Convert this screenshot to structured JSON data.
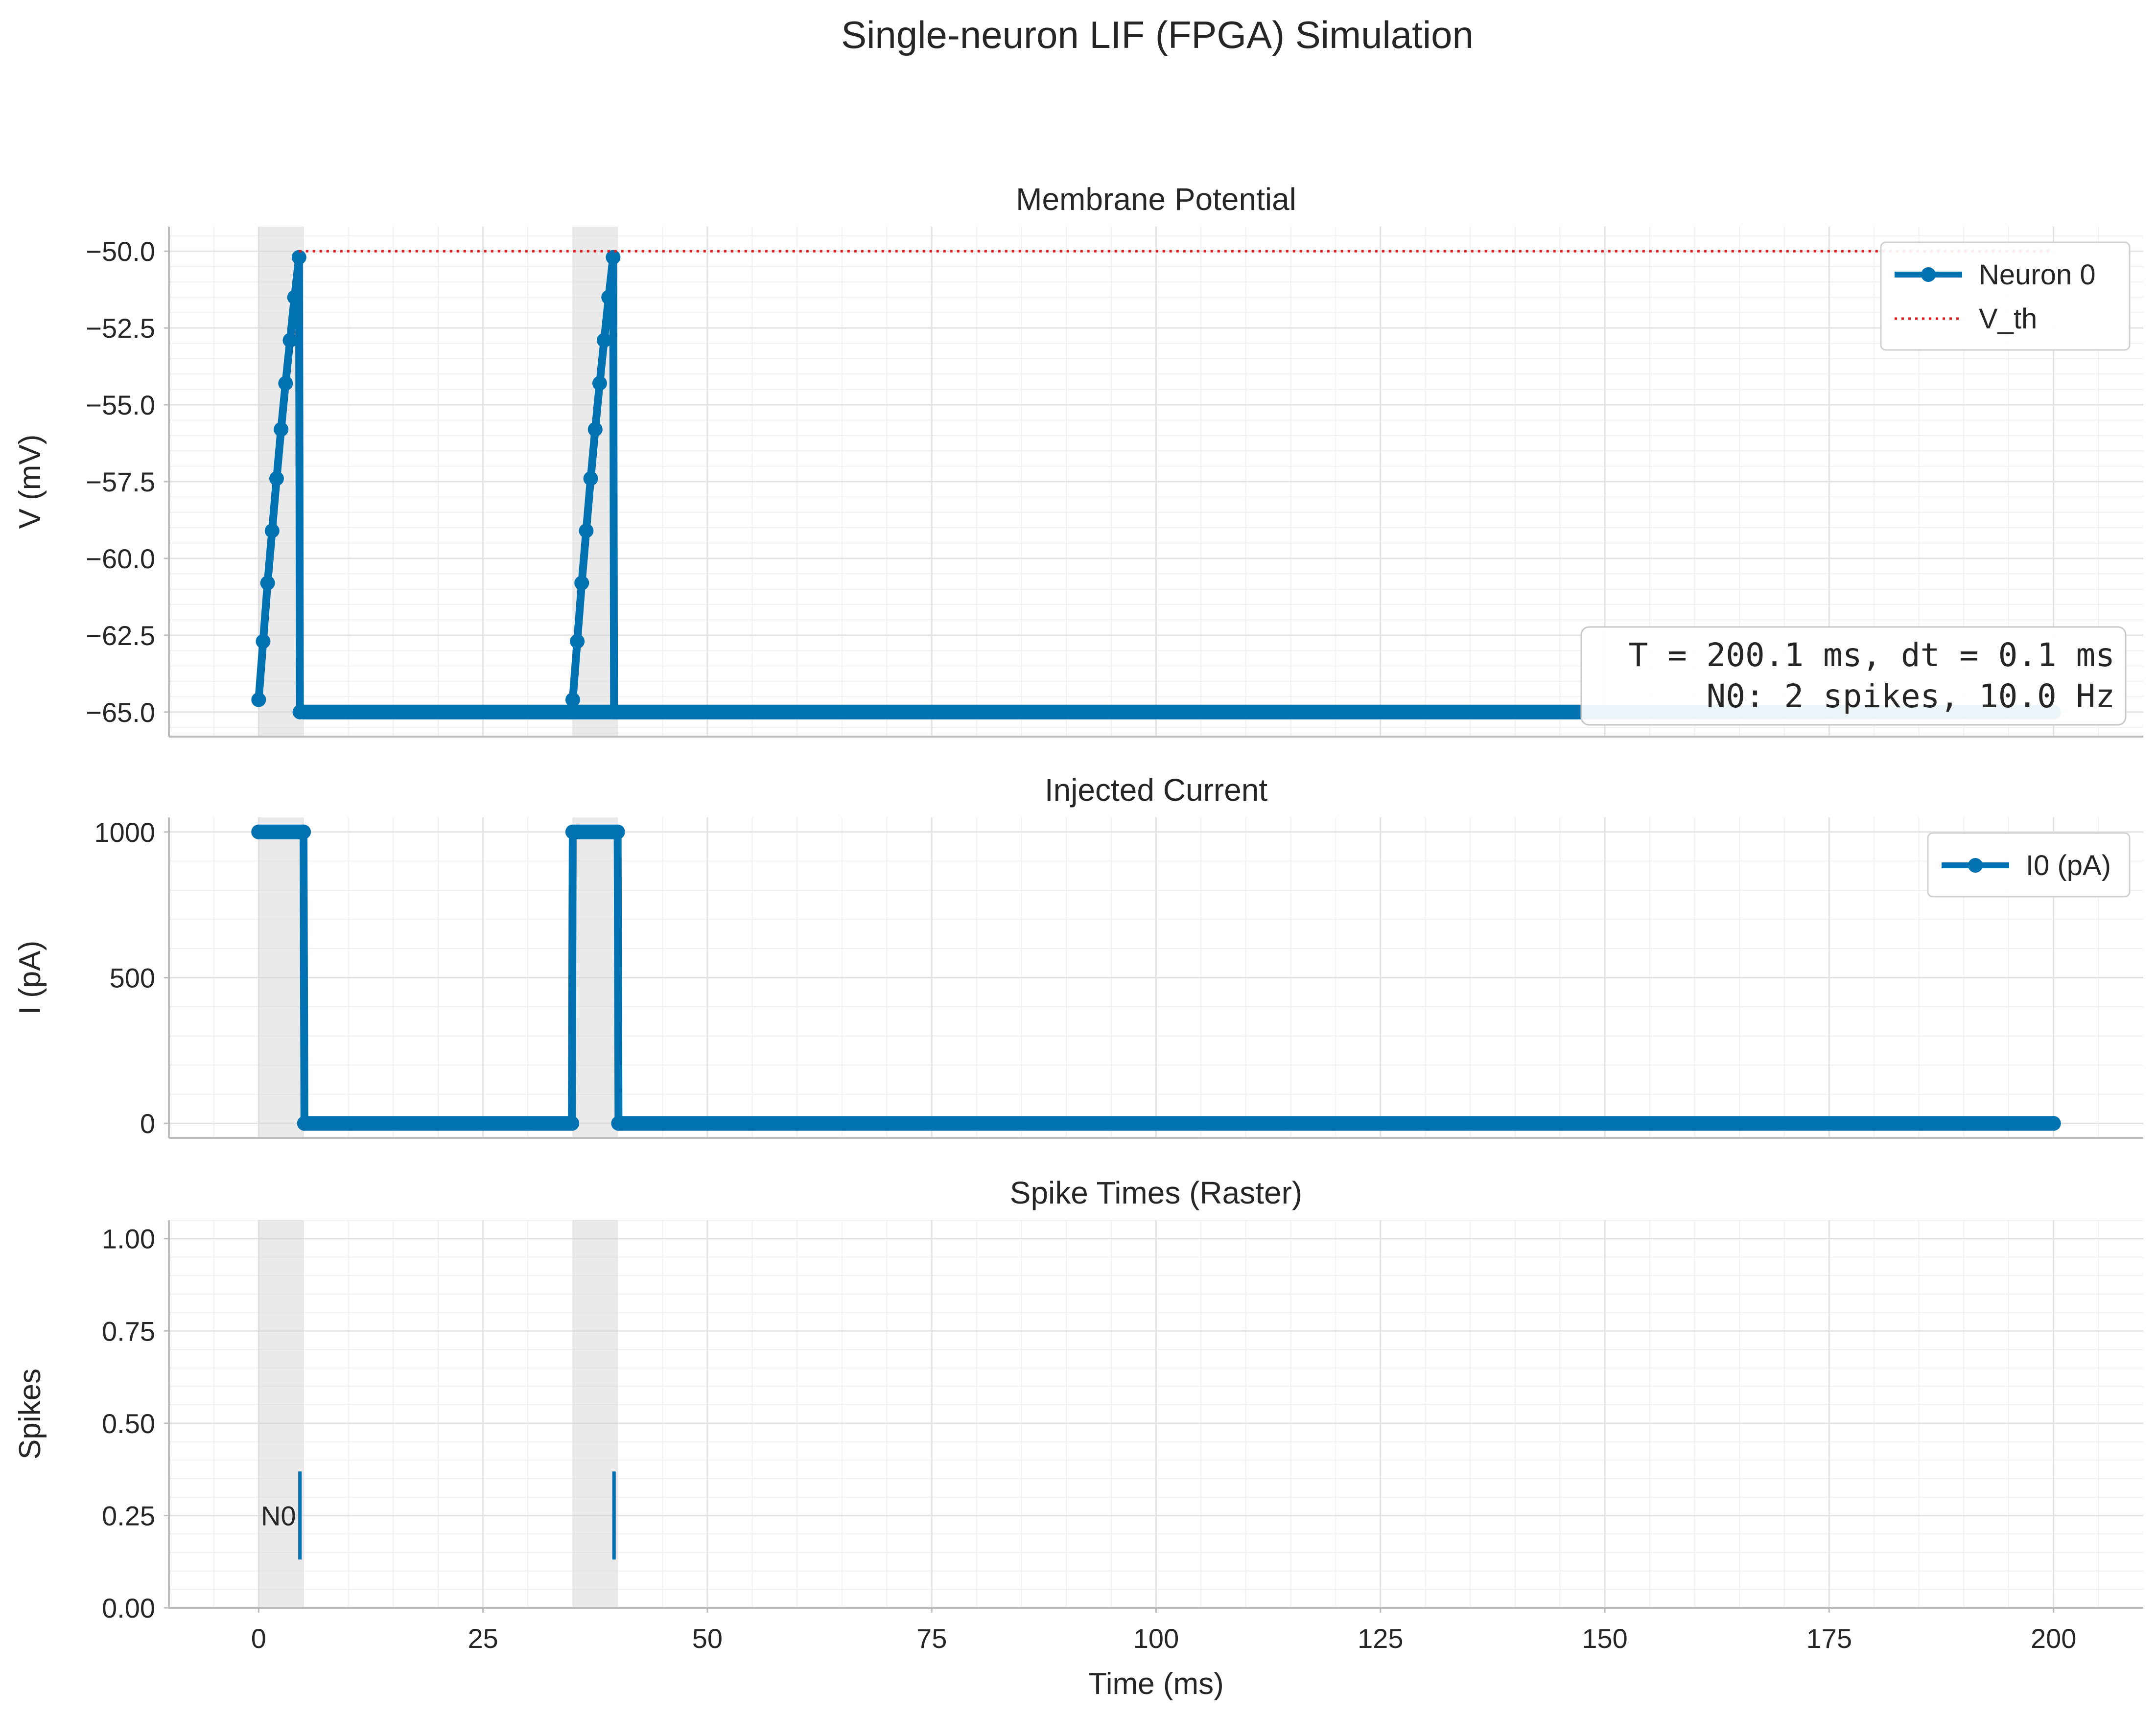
{
  "figure": {
    "title": "Single-neuron LIF (FPGA) Simulation"
  },
  "chart_data": [
    {
      "type": "line",
      "title": "Membrane Potential",
      "xlabel": "",
      "ylabel": "V (mV)",
      "xlim": [
        -10,
        210
      ],
      "ylim": [
        -65.8,
        -49.2
      ],
      "yticks": [
        -50.0,
        -52.5,
        -55.0,
        -57.5,
        -60.0,
        -62.5,
        -65.0
      ],
      "ytick_labels": [
        "−50.0",
        "−52.5",
        "−55.0",
        "−57.5",
        "−60.0",
        "−62.5",
        "−65.0"
      ],
      "grid": true,
      "shaded_intervals": [
        [
          0,
          5
        ],
        [
          35,
          40
        ]
      ],
      "series": [
        {
          "name": "Neuron 0",
          "color": "#0072b2",
          "style": "solid-markers",
          "x": [
            0.0,
            0.5,
            1.0,
            1.5,
            2.0,
            2.5,
            3.0,
            3.5,
            4.0,
            4.5,
            4.6,
            5.0,
            200.0
          ],
          "y": [
            -64.6,
            -62.7,
            -60.8,
            -59.1,
            -57.4,
            -55.8,
            -54.3,
            -52.9,
            -51.5,
            -50.2,
            -65.0,
            -65.0,
            -65.0
          ]
        },
        {
          "name": "Neuron 0",
          "color": "#0072b2",
          "style": "solid-markers",
          "x": [
            34.9,
            35.0,
            35.5,
            36.0,
            36.5,
            37.0,
            37.5,
            38.0,
            38.5,
            39.0,
            39.5,
            39.6,
            40.0
          ],
          "y": [
            -65.0,
            -64.6,
            -62.7,
            -60.8,
            -59.1,
            -57.4,
            -55.8,
            -54.3,
            -52.9,
            -51.5,
            -50.2,
            -65.0,
            -65.0
          ]
        },
        {
          "name": "V_th",
          "color": "#e41a1c",
          "style": "dotted",
          "x": [
            4.5,
            200.0
          ],
          "y": [
            -50.0,
            -50.0
          ]
        }
      ],
      "legend": {
        "placement": "top-right",
        "entries": [
          {
            "label": "Neuron 0",
            "color": "#0072b2",
            "style": "solid-markers"
          },
          {
            "label": "V_th",
            "color": "#e41a1c",
            "style": "dotted"
          }
        ]
      },
      "annotation": {
        "placement": "bottom-right",
        "lines": [
          "T = 200.1 ms, dt = 0.1 ms",
          "N0: 2 spikes, 10.0 Hz"
        ]
      }
    },
    {
      "type": "line",
      "title": "Injected Current",
      "xlabel": "",
      "ylabel": "I (pA)",
      "xlim": [
        -10,
        210
      ],
      "ylim": [
        -50,
        1050
      ],
      "yticks": [
        0,
        500,
        1000
      ],
      "ytick_labels": [
        "0",
        "500",
        "1000"
      ],
      "grid": true,
      "shaded_intervals": [
        [
          0,
          5
        ],
        [
          35,
          40
        ]
      ],
      "series": [
        {
          "name": "I0 (pA)",
          "color": "#0072b2",
          "style": "solid-markers",
          "x": [
            0.0,
            5.0,
            5.1,
            34.9,
            35.0,
            40.0,
            40.1,
            200.0
          ],
          "y": [
            1000,
            1000,
            0,
            0,
            1000,
            1000,
            0,
            0
          ]
        }
      ],
      "legend": {
        "placement": "top-right",
        "entries": [
          {
            "label": "I0 (pA)",
            "color": "#0072b2",
            "style": "solid-markers"
          }
        ]
      }
    },
    {
      "type": "scatter",
      "title": "Spike Times (Raster)",
      "xlabel": "Time (ms)",
      "ylabel": "Spikes",
      "xlim": [
        -10,
        210
      ],
      "ylim": [
        0,
        1.05
      ],
      "xticks": [
        0,
        25,
        50,
        75,
        100,
        125,
        150,
        175,
        200
      ],
      "xtick_labels": [
        "0",
        "25",
        "50",
        "75",
        "100",
        "125",
        "150",
        "175",
        "200"
      ],
      "yticks": [
        0.0,
        0.25,
        0.5,
        0.75,
        1.0
      ],
      "ytick_labels": [
        "0.00",
        "0.25",
        "0.50",
        "0.75",
        "1.00"
      ],
      "grid": true,
      "shaded_intervals": [
        [
          0,
          5
        ],
        [
          35,
          40
        ]
      ],
      "row_label": "N0",
      "row_y": 0.25,
      "spikes": [
        4.6,
        39.6
      ],
      "spike_color": "#0072b2"
    }
  ]
}
